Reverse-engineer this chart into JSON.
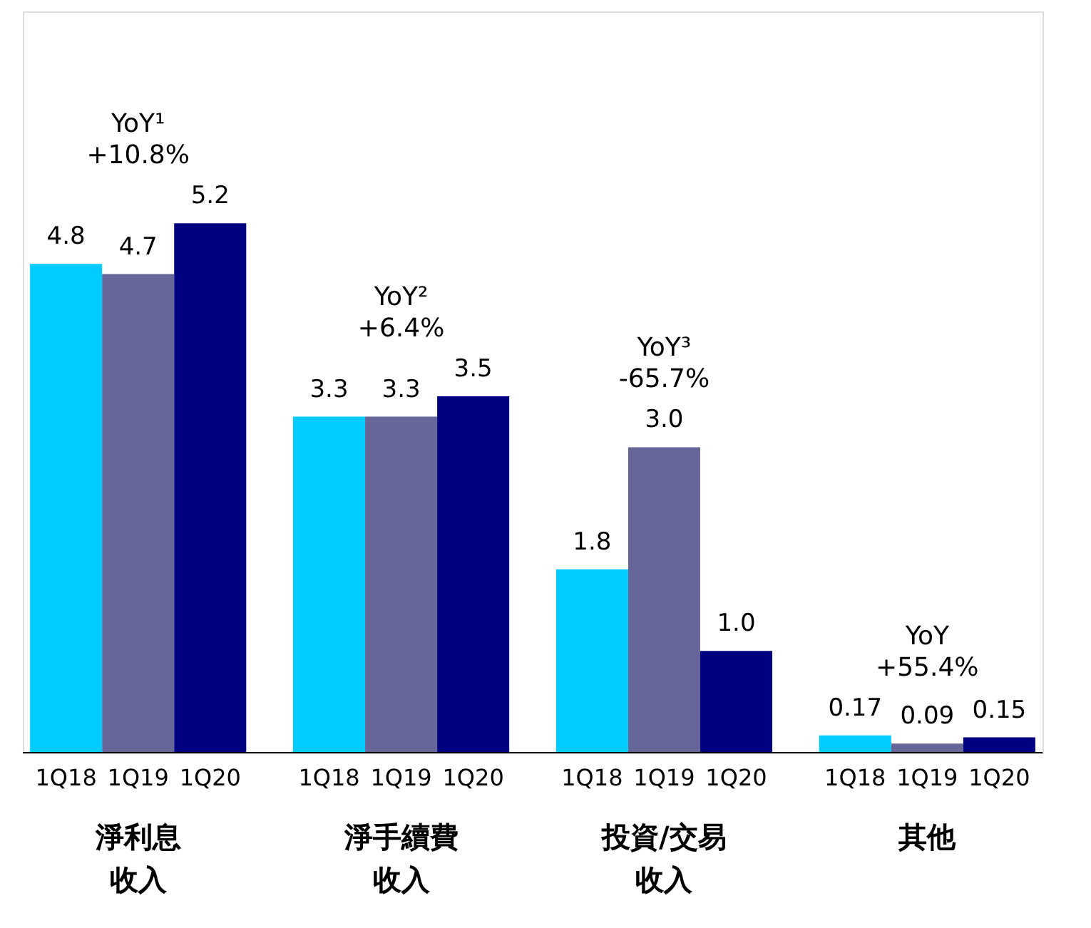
{
  "chart_data": {
    "type": "bar",
    "categories": [
      "淨利息收入",
      "淨手續費收入",
      "投資/交易收入",
      "其他"
    ],
    "series": [
      {
        "name": "1Q18",
        "color": "#00ccff",
        "values": [
          4.8,
          3.3,
          1.8,
          0.17
        ],
        "value_labels": [
          "4.8",
          "3.3",
          "1.8",
          "0.17"
        ]
      },
      {
        "name": "1Q19",
        "color": "#666699",
        "values": [
          4.7,
          3.3,
          3.0,
          0.09
        ],
        "value_labels": [
          "4.7",
          "3.3",
          "3.0",
          "0.09"
        ]
      },
      {
        "name": "1Q20",
        "color": "#000080",
        "values": [
          5.2,
          3.5,
          1.0,
          0.15
        ],
        "value_labels": [
          "5.2",
          "3.5",
          "1.0",
          "0.15"
        ]
      }
    ],
    "annotations": [
      "YoY¹\n+10.8%",
      "YoY²\n+6.4%",
      "YoY³\n-65.7%",
      "YoY\n+55.4%"
    ]
  }
}
